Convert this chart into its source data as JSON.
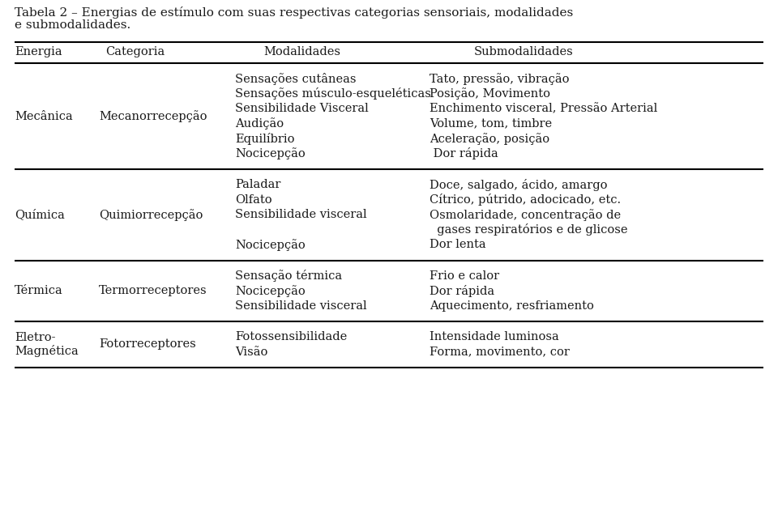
{
  "title_line1": "Tabela 2 – Energias de estímulo com suas respectivas categorias sensoriais, modalidades",
  "title_line2": "e submodalidades.",
  "col_headers": [
    "Energia",
    "Categoria",
    "Modalidades",
    "Submodalidades"
  ],
  "background_color": "#ffffff",
  "text_color": "#1a1a1a",
  "font_size": 10.5,
  "header_font_size": 10.5,
  "title_font_size": 11.0,
  "sections": [
    {
      "energia": "Mecânica",
      "categoria": "Mecanorrecepção",
      "rows": [
        [
          "Sensações cutâneas",
          "Tato, pressão, vibração"
        ],
        [
          "Sensações músculo-esqueléticas",
          "Posição, Movimento"
        ],
        [
          "Sensibilidade Visceral",
          "Enchimento visceral, Pressão Arterial"
        ],
        [
          "Audição",
          "Volume, tom, timbre"
        ],
        [
          "Equilíbrio",
          "Aceleração, posição"
        ],
        [
          "Nocicepção",
          " Dor rápida"
        ]
      ]
    },
    {
      "energia": "Química",
      "categoria": "Quimiorrecepção",
      "rows": [
        [
          "Paladar",
          "Doce, salgado, ácido, amargo"
        ],
        [
          "Olfato",
          "Cítrico, pútrido, adocicado, etc."
        ],
        [
          "Sensibilidade visceral",
          "Osmolaridade, concentração de"
        ],
        [
          "",
          "  gases respiratórios e de glicose"
        ],
        [
          "Nocicepção",
          "Dor lenta"
        ]
      ]
    },
    {
      "energia": "Térmica",
      "categoria": "Termorreceptores",
      "rows": [
        [
          "Sensação térmica",
          "Frio e calor"
        ],
        [
          "Nocicepção",
          "Dor rápida"
        ],
        [
          "Sensibilidade visceral",
          "Aquecimento, resfriamento"
        ]
      ]
    },
    {
      "energia": "Eletro-\nMagnética",
      "categoria": "Fotorreceptores",
      "rows": [
        [
          "Fotossensibilidade",
          "Intensidade luminosa"
        ],
        [
          "Visão",
          "Forma, movimento, cor"
        ]
      ]
    }
  ]
}
